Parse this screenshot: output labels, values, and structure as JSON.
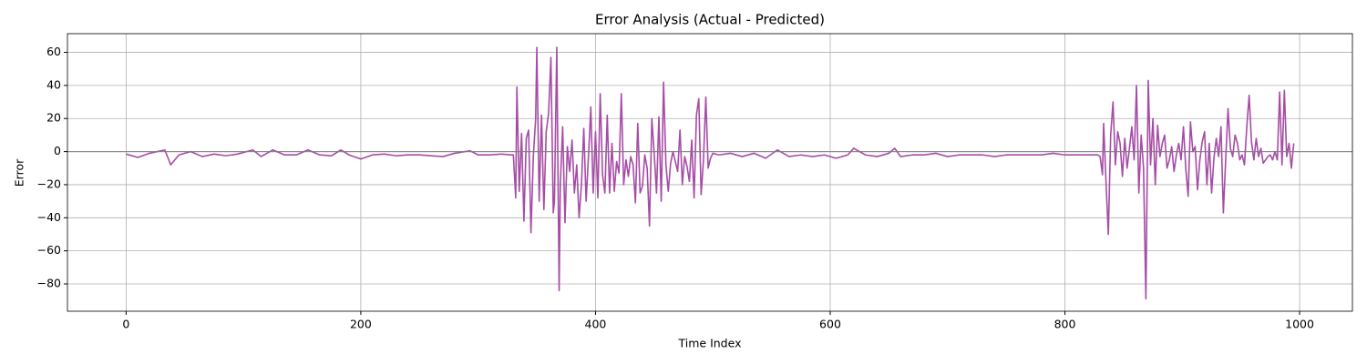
{
  "chart_data": {
    "type": "line",
    "title": "Error Analysis (Actual - Predicted)",
    "xlabel": "Time Index",
    "ylabel": "Error",
    "x": [
      0,
      10,
      20,
      33,
      38,
      45,
      55,
      65,
      75,
      85,
      95,
      108,
      115,
      125,
      135,
      145,
      155,
      165,
      175,
      183,
      190,
      200,
      210,
      220,
      230,
      240,
      250,
      260,
      270,
      280,
      293,
      300,
      310,
      320,
      328,
      330,
      332,
      333,
      335,
      337,
      339,
      341,
      343,
      345,
      347,
      349,
      350,
      352,
      354,
      356,
      358,
      360,
      362,
      364,
      365,
      367,
      369,
      370,
      372,
      374,
      376,
      378,
      380,
      382,
      384,
      386,
      388,
      390,
      392,
      394,
      396,
      398,
      400,
      402,
      404,
      406,
      408,
      410,
      412,
      414,
      416,
      418,
      420,
      422,
      424,
      426,
      428,
      430,
      432,
      434,
      436,
      438,
      440,
      442,
      444,
      446,
      448,
      450,
      452,
      454,
      456,
      458,
      460,
      462,
      464,
      466,
      468,
      470,
      472,
      474,
      476,
      478,
      480,
      482,
      484,
      486,
      488,
      490,
      492,
      494,
      496,
      498,
      500,
      505,
      515,
      525,
      535,
      545,
      555,
      565,
      575,
      585,
      595,
      605,
      615,
      620,
      630,
      640,
      650,
      655,
      660,
      670,
      680,
      690,
      700,
      710,
      720,
      730,
      740,
      750,
      760,
      770,
      780,
      790,
      800,
      810,
      820,
      828,
      830,
      832,
      833,
      835,
      837,
      839,
      841,
      843,
      845,
      847,
      849,
      851,
      853,
      855,
      857,
      859,
      861,
      863,
      865,
      867,
      869,
      871,
      873,
      875,
      877,
      879,
      881,
      883,
      885,
      887,
      889,
      891,
      893,
      895,
      897,
      899,
      901,
      903,
      905,
      907,
      909,
      911,
      913,
      915,
      917,
      919,
      921,
      923,
      925,
      927,
      929,
      931,
      933,
      935,
      937,
      939,
      941,
      943,
      945,
      947,
      949,
      951,
      953,
      955,
      957,
      959,
      961,
      963,
      965,
      967,
      969,
      971,
      973,
      975,
      977,
      979,
      981,
      983,
      985,
      987,
      989,
      991,
      993,
      995
    ],
    "series": [
      {
        "name": "Error",
        "color": "#a64ca6",
        "values": [
          -1.5,
          -3.5,
          -1,
          1,
          -8,
          -2,
          0,
          -3,
          -1.5,
          -2.5,
          -1.5,
          1,
          -3,
          1,
          -2,
          -2,
          1,
          -2,
          -2.5,
          1,
          -2,
          -4.5,
          -2,
          -1.5,
          -2.5,
          -2,
          -2,
          -2.5,
          -3,
          -1,
          0.5,
          -2,
          -2,
          -1.5,
          -2,
          -2,
          -28,
          39,
          -24,
          11,
          -42,
          8,
          13,
          -49,
          -3,
          20,
          63,
          -30,
          22,
          -35,
          12,
          23,
          57,
          -37,
          -30,
          63,
          -84,
          -20,
          15,
          -43,
          3,
          -12,
          7,
          -25,
          -8,
          -40,
          -20,
          14,
          -30,
          -3,
          27,
          -25,
          12,
          -28,
          35,
          -14,
          -25,
          22,
          -25,
          5,
          -24,
          -6,
          -13,
          35,
          -20,
          -5,
          -15,
          -3,
          -8,
          -31,
          17,
          -25,
          -21,
          -2,
          -10,
          -45,
          20,
          -1,
          -25,
          21,
          -30,
          42,
          -8,
          -24,
          -7,
          0,
          -6,
          -12,
          13,
          -20,
          -3,
          -9,
          -18,
          7,
          -28,
          22,
          32,
          -26,
          -5,
          33,
          -10,
          -4,
          -1,
          -2,
          -1,
          -3,
          -1,
          -4,
          1,
          -3,
          -2,
          -3,
          -2,
          -4,
          -2,
          2,
          -2,
          -3,
          -1,
          2,
          -3,
          -2,
          -2,
          -1,
          -3,
          -2,
          -2,
          -2,
          -3,
          -2,
          -2,
          -2,
          -2,
          -1,
          -2,
          -2,
          -2,
          -2,
          -3,
          -14,
          17,
          -18,
          -50,
          10,
          30,
          -8,
          12,
          5,
          -15,
          8,
          -10,
          2,
          15,
          -5,
          40,
          -25,
          10,
          -10,
          -89,
          43,
          -8,
          20,
          -20,
          16,
          -3,
          5,
          10,
          -10,
          -5,
          3,
          -12,
          -2,
          5,
          -5,
          15,
          -10,
          -27,
          18,
          0,
          3,
          -23,
          -5,
          6,
          12,
          -20,
          5,
          -25,
          -4,
          8,
          -3,
          15,
          -37,
          -5,
          26,
          2,
          -3,
          10,
          5,
          -5,
          -2,
          -8,
          15,
          34,
          6,
          -5,
          8,
          -3,
          2,
          -7,
          -5,
          -3,
          -2,
          -5,
          0,
          -5,
          36,
          -8,
          37,
          -3,
          5,
          -10,
          5
        ]
      }
    ],
    "hline": 0,
    "hline_color": "#808080",
    "xlim": [
      -50,
      1045
    ],
    "ylim": [
      -96.5,
      71.3
    ],
    "xticks": [
      0,
      200,
      400,
      600,
      800,
      1000
    ],
    "yticks": [
      {
        "value": -80,
        "label": "−80"
      },
      {
        "value": -60,
        "label": "−60"
      },
      {
        "value": -40,
        "label": "−40"
      },
      {
        "value": -20,
        "label": "−20"
      },
      0,
      20,
      40,
      60
    ],
    "grid": true
  }
}
